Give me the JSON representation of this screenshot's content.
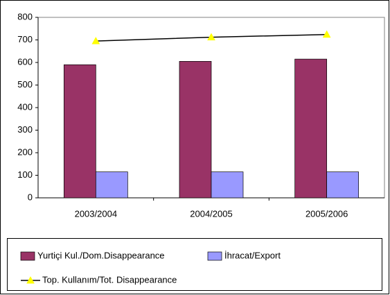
{
  "chart_data": {
    "type": "bar",
    "categories": [
      "2003/2004",
      "2004/2005",
      "2005/2006"
    ],
    "series": [
      {
        "name": "Yurtiçi Kul./Dom.Disappearance",
        "color": "#993366",
        "type": "bar",
        "values": [
          590,
          605,
          615
        ]
      },
      {
        "name": "İhracat/Export",
        "color": "#9999ff",
        "type": "bar",
        "values": [
          115,
          115,
          115
        ]
      },
      {
        "name": "Top. Kullanım/Tot. Disappearance",
        "color": "#000000",
        "marker_color": "#ffff00",
        "type": "line",
        "values": [
          695,
          712,
          724
        ]
      }
    ],
    "ylim": [
      0,
      800
    ],
    "yticks": [
      0,
      100,
      200,
      300,
      400,
      500,
      600,
      700,
      800
    ],
    "grid": false,
    "legend": "bottom"
  }
}
